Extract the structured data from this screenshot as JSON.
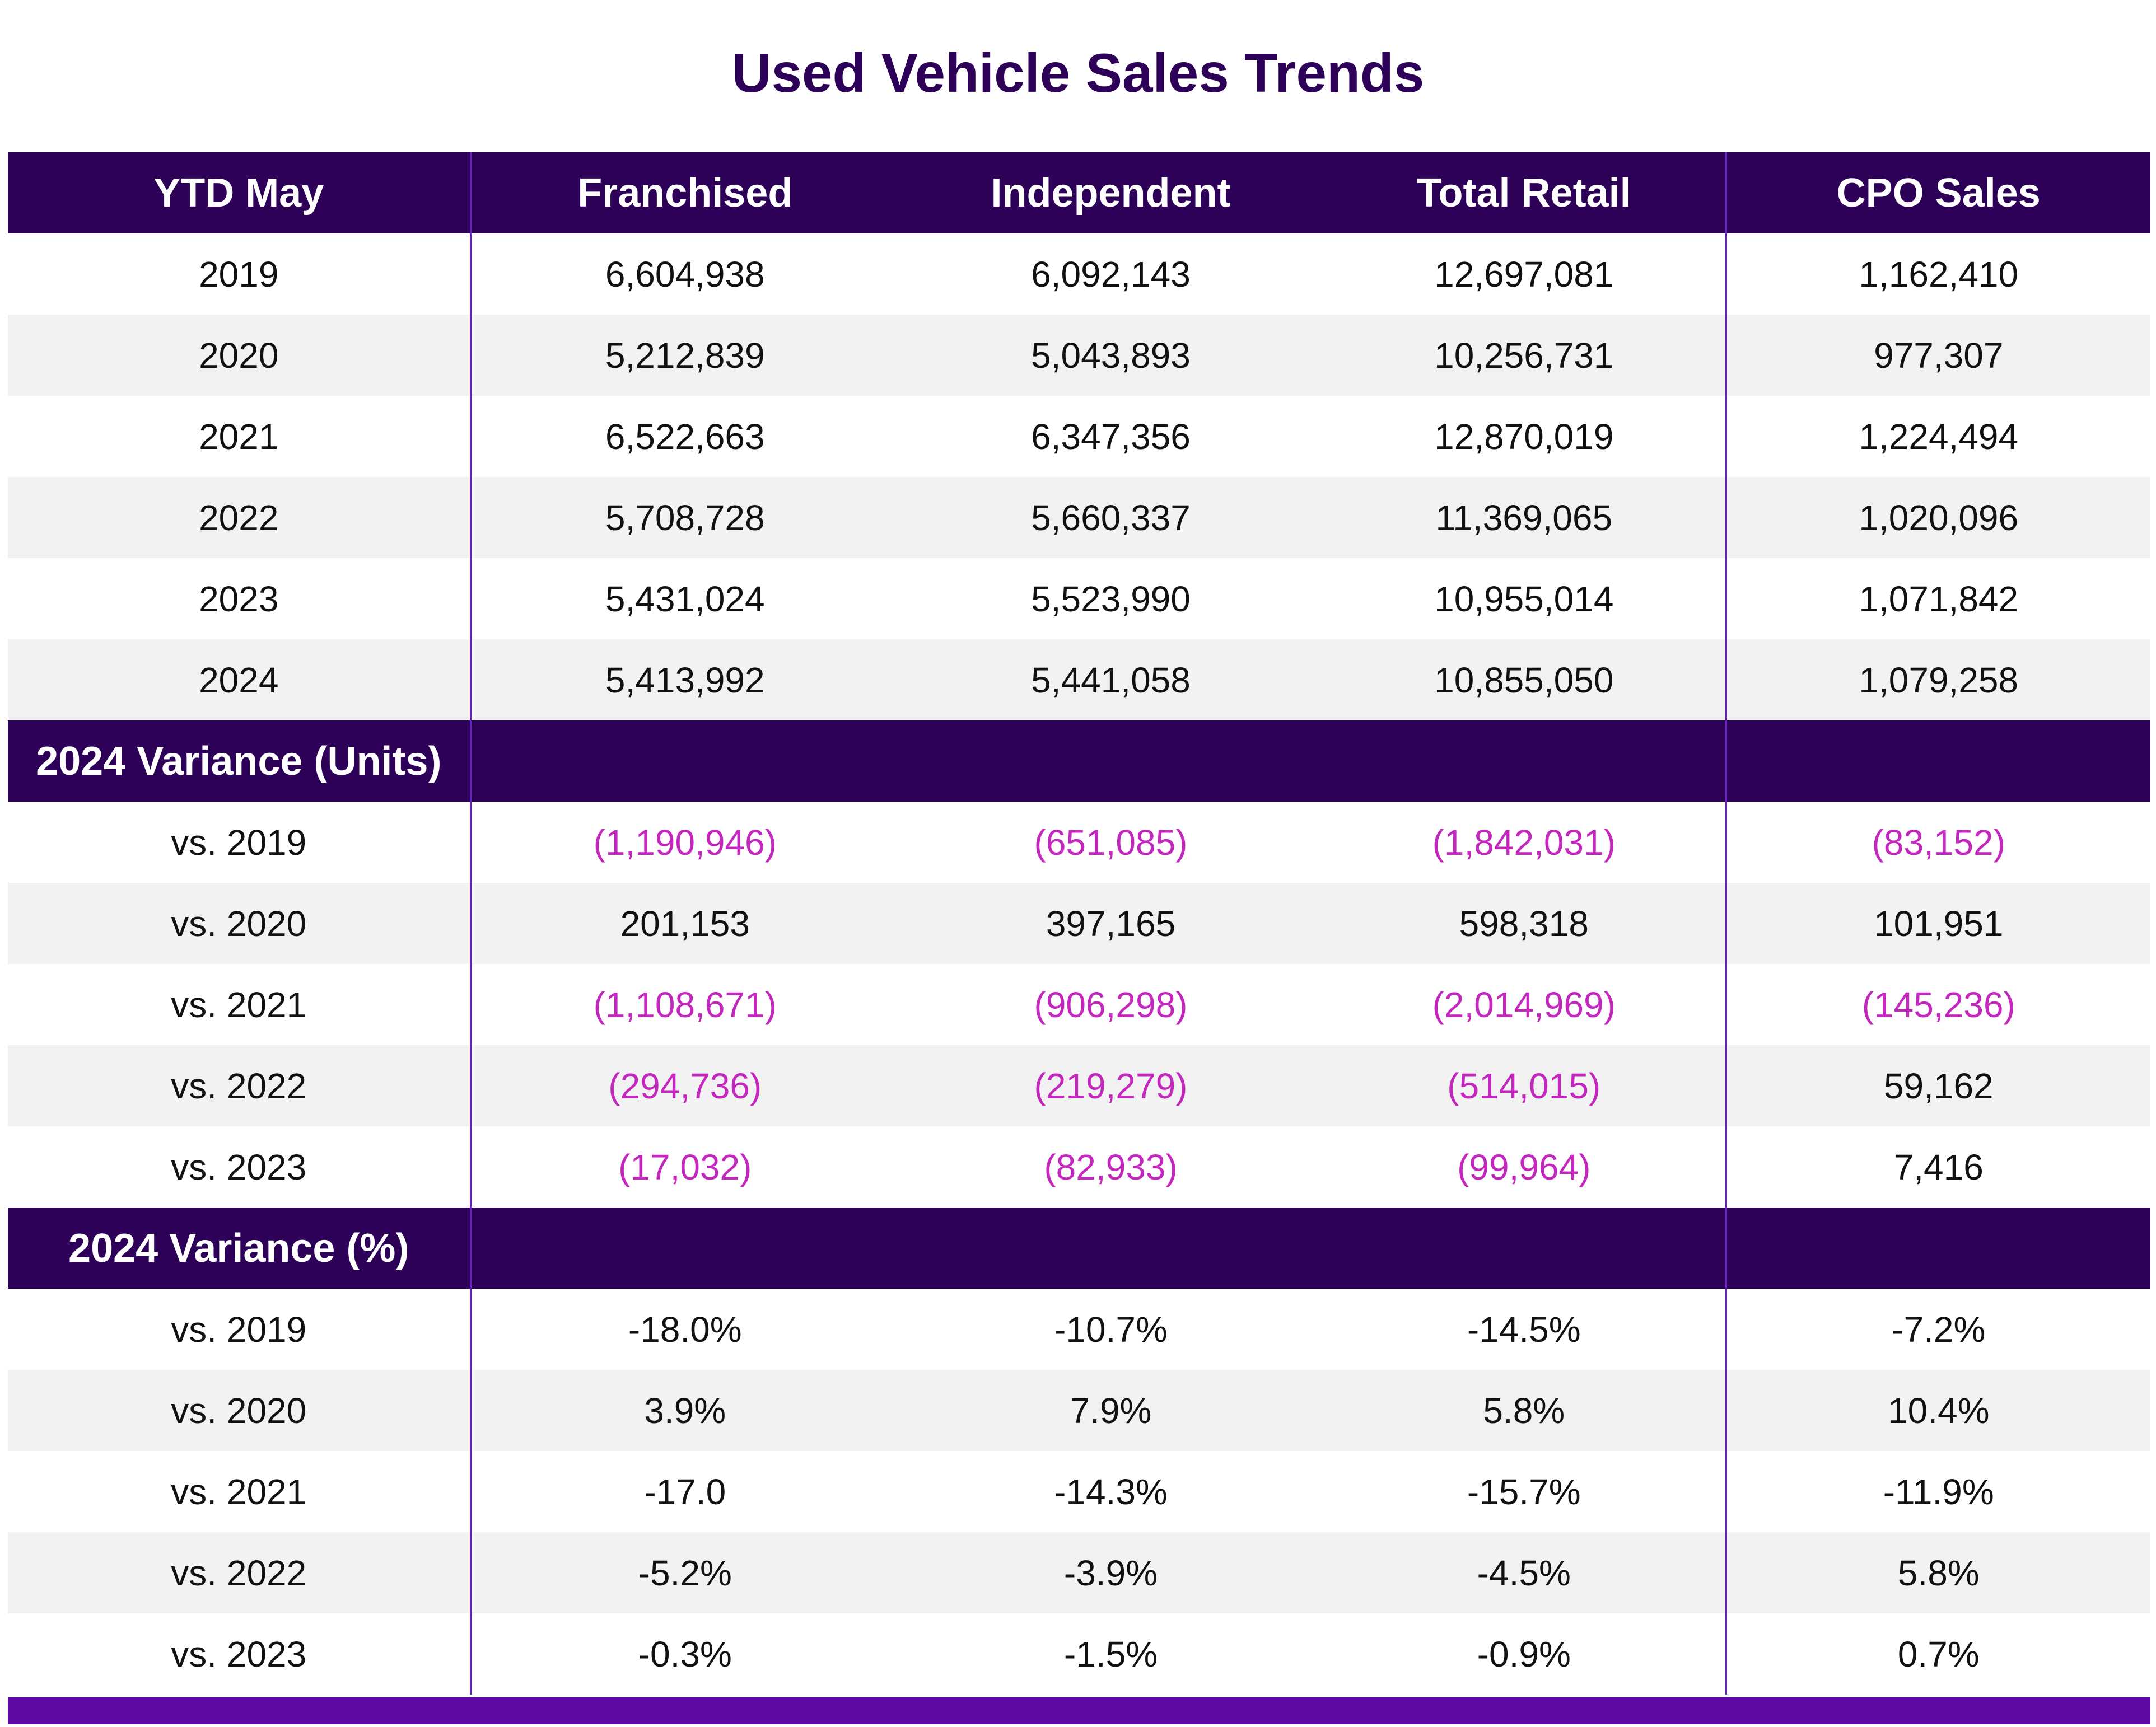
{
  "chart_data": {
    "type": "table",
    "title": "Used Vehicle Sales Trends",
    "columns": [
      "YTD May",
      "Franchised",
      "Independent",
      "Total Retail",
      "CPO Sales"
    ],
    "sections": [
      {
        "heading": "",
        "rows": [
          {
            "label": "2019",
            "values": [
              "6,604,938",
              "6,092,143",
              "12,697,081",
              "1,162,410"
            ]
          },
          {
            "label": "2020",
            "values": [
              "5,212,839",
              "5,043,893",
              "10,256,731",
              "977,307"
            ]
          },
          {
            "label": "2021",
            "values": [
              "6,522,663",
              "6,347,356",
              "12,870,019",
              "1,224,494"
            ]
          },
          {
            "label": "2022",
            "values": [
              "5,708,728",
              "5,660,337",
              "11,369,065",
              "1,020,096"
            ]
          },
          {
            "label": "2023",
            "values": [
              "5,431,024",
              "5,523,990",
              "10,955,014",
              "1,071,842"
            ]
          },
          {
            "label": "2024",
            "values": [
              "5,413,992",
              "5,441,058",
              "10,855,050",
              "1,079,258"
            ]
          }
        ]
      },
      {
        "heading": "2024 Variance (Units)",
        "rows": [
          {
            "label": "vs. 2019",
            "values": [
              "(1,190,946)",
              "(651,085)",
              "(1,842,031)",
              "(83,152)"
            ]
          },
          {
            "label": "vs. 2020",
            "values": [
              "201,153",
              "397,165",
              "598,318",
              "101,951"
            ]
          },
          {
            "label": "vs. 2021",
            "values": [
              "(1,108,671)",
              "(906,298)",
              "(2,014,969)",
              "(145,236)"
            ]
          },
          {
            "label": "vs. 2022",
            "values": [
              "(294,736)",
              "(219,279)",
              "(514,015)",
              "59,162"
            ]
          },
          {
            "label": "vs. 2023",
            "values": [
              "(17,032)",
              "(82,933)",
              "(99,964)",
              "7,416"
            ]
          }
        ]
      },
      {
        "heading": "2024 Variance (%)",
        "rows": [
          {
            "label": "vs. 2019",
            "values": [
              "-18.0%",
              "-10.7%",
              "-14.5%",
              "-7.2%"
            ]
          },
          {
            "label": "vs. 2020",
            "values": [
              "3.9%",
              "7.9%",
              "5.8%",
              "10.4%"
            ]
          },
          {
            "label": "vs. 2021",
            "values": [
              "-17.0",
              "-14.3%",
              "-15.7%",
              "-11.9%"
            ]
          },
          {
            "label": "vs. 2022",
            "values": [
              "-5.2%",
              "-3.9%",
              "-4.5%",
              "5.8%"
            ]
          },
          {
            "label": "vs. 2023",
            "values": [
              "-0.3%",
              "-1.5%",
              "-0.9%",
              "0.7%"
            ]
          }
        ]
      }
    ]
  },
  "colors": {
    "header_bg": "#2c0157",
    "title": "#2c0157",
    "negative": "#c327be",
    "alt_row": "#f2f2f2",
    "bottom_bar": "#5e0aa3",
    "divider": "#6a1fbf"
  }
}
